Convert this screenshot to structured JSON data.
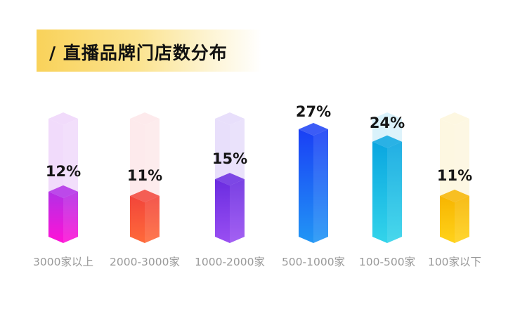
{
  "title": "/ 直播品牌门店数分布",
  "chart_data": {
    "type": "bar",
    "title": "/ 直播品牌门店数分布",
    "categories": [
      "3000家以上",
      "2000-3000家",
      "1000-2000家",
      "500-1000家",
      "100-500家",
      "100家以下"
    ],
    "values": [
      12,
      11,
      15,
      27,
      24,
      11
    ],
    "labels": [
      "12%",
      "11%",
      "15%",
      "27%",
      "24%",
      "11%"
    ],
    "unit": "%",
    "ylim": [
      0,
      27
    ],
    "colors": [
      {
        "top": "#b32fe6",
        "bottom": "#ff12d6",
        "ghost": "#f0d8fb"
      },
      {
        "top": "#f2453a",
        "bottom": "#ff6a3a",
        "ghost": "#fde8ea"
      },
      {
        "top": "#6a2ce0",
        "bottom": "#9a4ff2",
        "ghost": "#e6dcfb"
      },
      {
        "top": "#1a3ff5",
        "bottom": "#2196f5",
        "ghost": "#dbe4fc"
      },
      {
        "top": "#0aa6e0",
        "bottom": "#33d4ea",
        "ghost": "#d6f1fb"
      },
      {
        "top": "#f7b500",
        "bottom": "#ffd21a",
        "ghost": "#fdf7de"
      }
    ]
  }
}
